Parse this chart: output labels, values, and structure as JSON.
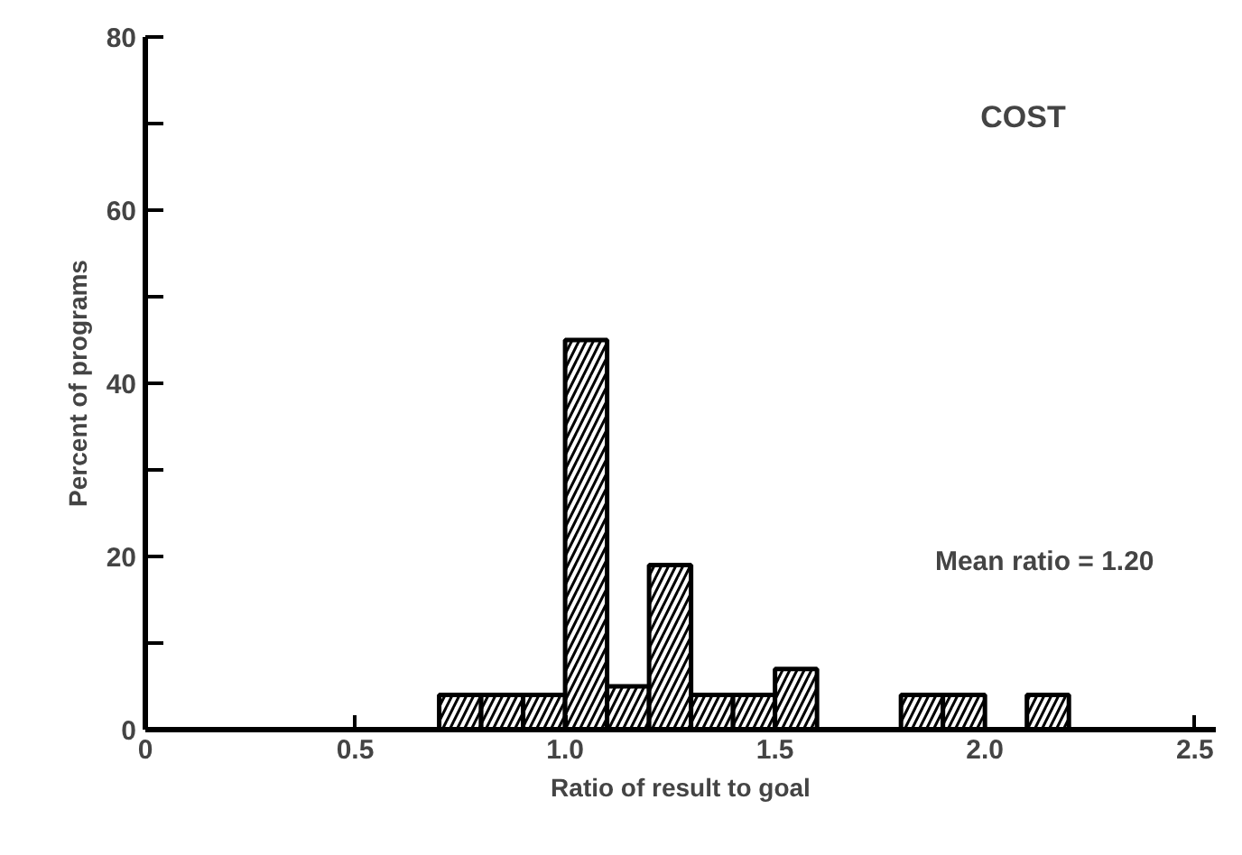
{
  "chart_data": {
    "type": "histogram",
    "title": "COST",
    "xlabel": "Ratio of result to goal",
    "ylabel": "Percent of programs",
    "annotations": [
      "Mean ratio = 1.20"
    ],
    "bins": [
      0.7,
      0.8,
      0.9,
      1.0,
      1.1,
      1.2,
      1.3,
      1.4,
      1.5,
      1.6,
      1.7,
      1.8,
      1.9,
      2.0,
      2.1,
      2.2
    ],
    "values": [
      4,
      4,
      4,
      45,
      5,
      19,
      4,
      4,
      7,
      0,
      0,
      4,
      4,
      0,
      4
    ],
    "color": "#000000",
    "xlim": [
      0,
      2.55
    ],
    "ylim": [
      0,
      80
    ],
    "xticks": [
      {
        "value": 0,
        "label": "0"
      },
      0.5,
      {
        "value": 1,
        "label": "1.0"
      },
      1.5,
      {
        "value": 2,
        "label": "2.0"
      },
      2.5
    ],
    "yticks": [
      0,
      {
        "value": 10,
        "label": null
      },
      20,
      {
        "value": 30,
        "label": null
      },
      40,
      {
        "value": 50,
        "label": null
      },
      60,
      {
        "value": 70,
        "label": null
      },
      80
    ],
    "grid": false
  }
}
